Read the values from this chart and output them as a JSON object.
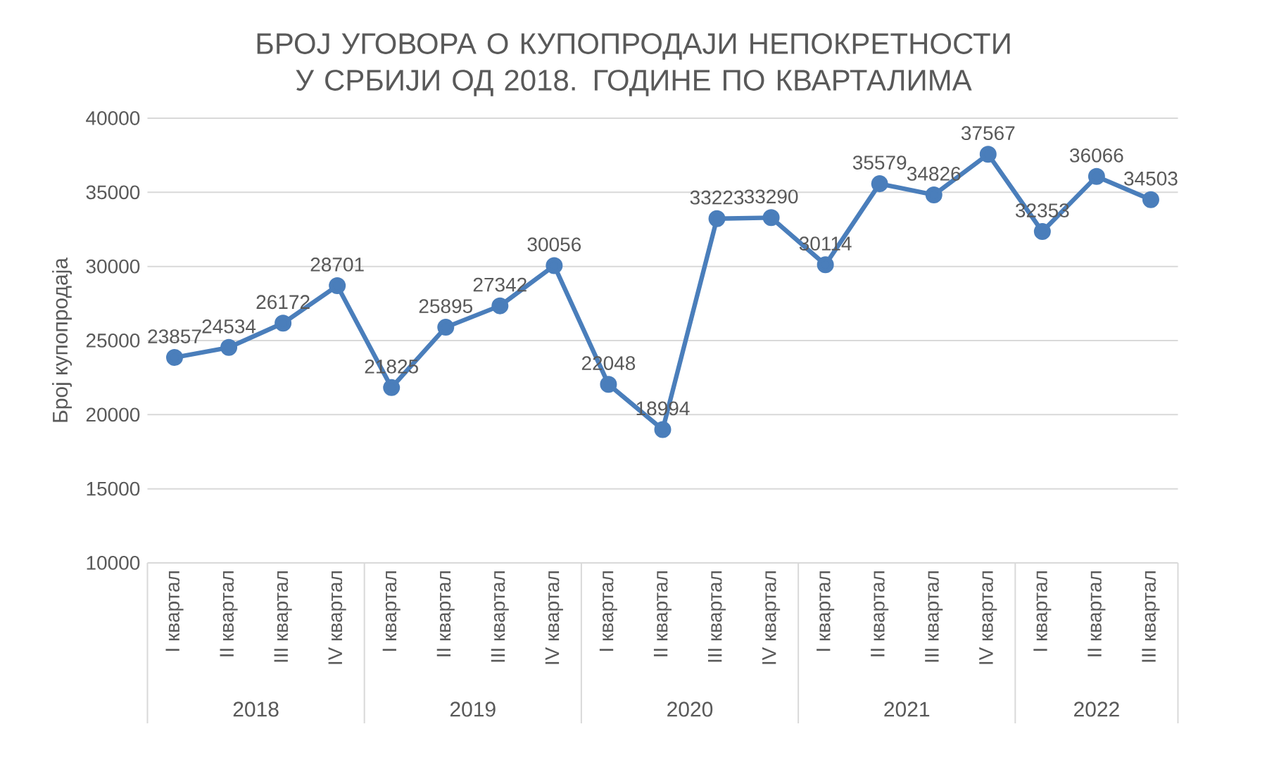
{
  "chart_data": {
    "type": "line",
    "title": "БРОЈ УГОВОРА О КУПОПРОДАЈИ НЕПОКРЕТНОСТИ У СРБИЈИ ОД 2018. ГОДИНЕ ПО КВАРТАЛИМА",
    "ylabel": "Број купопродаја",
    "categories": [
      "I квартал",
      "II квартал",
      "III квартал",
      "IV квартал",
      "I квартал",
      "II квартал",
      "III квартал",
      "IV квартал",
      "I квартал",
      "II квартал",
      "III квартал",
      "IV квартал",
      "I квартал",
      "II квартал",
      "III квартал",
      "IV квартал",
      "I квартал",
      "II квартал",
      "III квартал"
    ],
    "series": [
      {
        "color": "#4a7ebb",
        "values": [
          23857,
          24534,
          26172,
          28701,
          21825,
          25895,
          27342,
          30056,
          22048,
          18994,
          33223,
          33290,
          30114,
          35579,
          34826,
          37567,
          32353,
          36066,
          34503
        ]
      }
    ],
    "ylim": [
      10000,
      40000
    ],
    "yticks": [
      10000,
      15000,
      20000,
      25000,
      30000,
      35000,
      40000
    ],
    "annotations": [
      "2018",
      "2019",
      "2020",
      "2021",
      "2022"
    ],
    "grid": "y",
    "data_labels": true,
    "marker": "circle",
    "line_style": "solid"
  }
}
